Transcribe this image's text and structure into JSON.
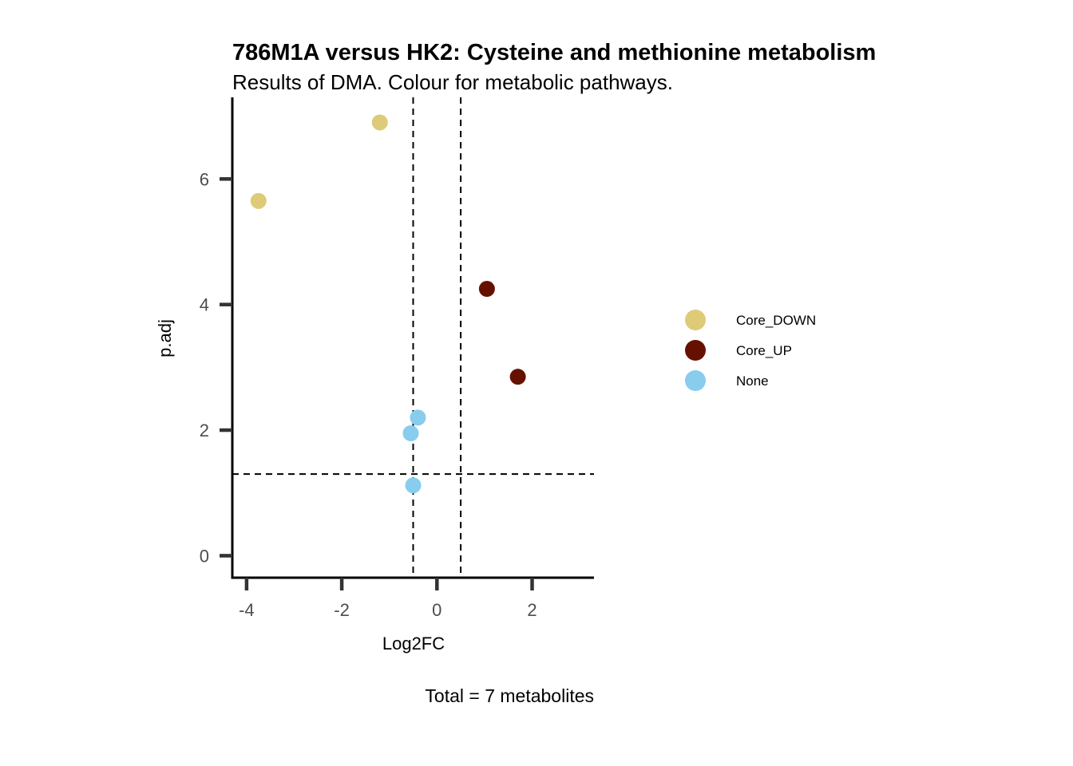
{
  "chart_data": {
    "type": "scatter",
    "title": "786M1A versus HK2: Cysteine and methionine metabolism",
    "subtitle": "Results of DMA. Colour for metabolic pathways.",
    "xlabel": "Log2FC",
    "ylabel": "p.adj",
    "caption": "Total = 7 metabolites",
    "xlim": [
      -4.3,
      3.3
    ],
    "ylim": [
      -0.35,
      7.3
    ],
    "x_ticks": [
      -4,
      -2,
      0,
      2
    ],
    "x_tick_labels": [
      "-4",
      "-2",
      "0",
      "2"
    ],
    "y_ticks": [
      0,
      2,
      4,
      6
    ],
    "y_tick_labels": [
      "0",
      "2",
      "4",
      "6"
    ],
    "grid": false,
    "legend_position": "right",
    "thresholds": {
      "vertical": [
        -0.5,
        0.5
      ],
      "horizontal": [
        1.3
      ]
    },
    "series": [
      {
        "name": "Core_DOWN",
        "color": "#DDCB77",
        "points": [
          [
            -1.2,
            6.9
          ],
          [
            -3.75,
            5.65
          ]
        ]
      },
      {
        "name": "Core_UP",
        "color": "#661100",
        "points": [
          [
            1.05,
            4.25
          ],
          [
            1.7,
            2.85
          ]
        ]
      },
      {
        "name": "None",
        "color": "#88CCEE",
        "points": [
          [
            -0.4,
            2.2
          ],
          [
            -0.55,
            1.95
          ],
          [
            -0.5,
            1.12
          ]
        ]
      }
    ]
  }
}
